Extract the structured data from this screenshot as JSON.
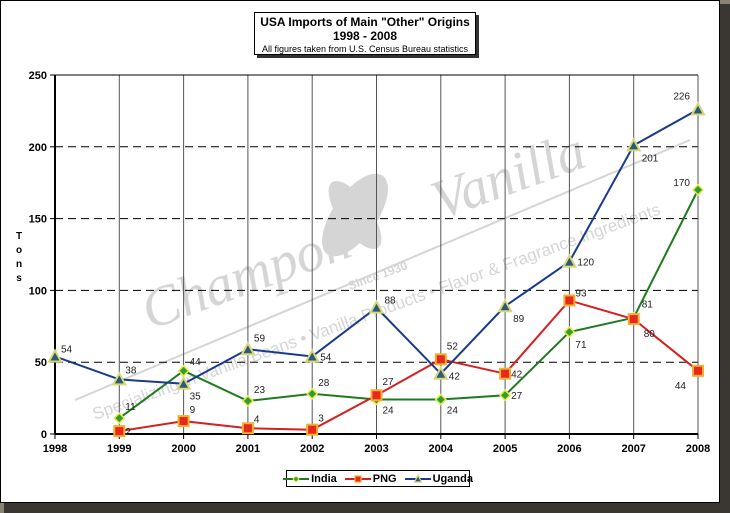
{
  "chart_data": {
    "type": "line",
    "title": "USA Imports of Main \"Other\" Origins",
    "subtitle": "1998 - 2008",
    "note": "All figures taken from U.S. Census Bureau statistics",
    "xlabel": "",
    "ylabel": "Tons",
    "ylim": [
      0,
      250
    ],
    "yticks": [
      0,
      50,
      100,
      150,
      200,
      250
    ],
    "grid": {
      "horizontal": "dashed",
      "vertical": "solid"
    },
    "legend_position": "bottom",
    "categories": [
      "1998",
      "1999",
      "2000",
      "2001",
      "2002",
      "2003",
      "2004",
      "2005",
      "2006",
      "2007",
      "2008"
    ],
    "series": [
      {
        "name": "India",
        "color": "#1f7a1f",
        "marker": "diamond",
        "marker_color": "#2e9e2e",
        "values": [
          null,
          11,
          44,
          23,
          28,
          24,
          24,
          27,
          71,
          81,
          170
        ]
      },
      {
        "name": "PNG",
        "color": "#d42020",
        "marker": "square",
        "marker_color": "#e8281e",
        "values": [
          null,
          2,
          9,
          4,
          3,
          27,
          52,
          42,
          93,
          80,
          44
        ]
      },
      {
        "name": "Uganda",
        "color": "#1a3a8a",
        "marker": "triangle",
        "marker_color": "#2c5a78",
        "values": [
          54,
          38,
          35,
          59,
          54,
          88,
          42,
          89,
          120,
          201,
          226
        ]
      }
    ],
    "watermark": {
      "brand": "Champon Vanilla",
      "since": "Since 1930",
      "tagline": "Specializing in Vanilla Beans • Vanilla Products • Flavor & Fragrance Ingredients"
    }
  }
}
